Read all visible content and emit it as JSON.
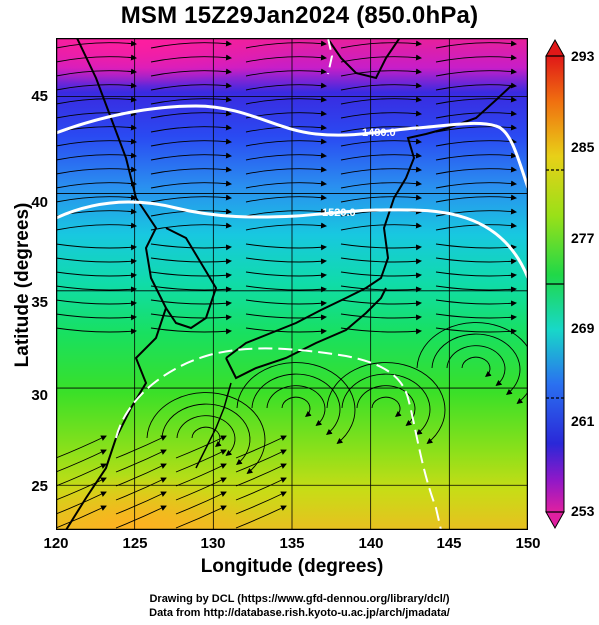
{
  "title": "MSM 15Z29Jan2024 (850.0hPa)",
  "map": {
    "lon_range": [
      120,
      150
    ],
    "lat_range": [
      22.7,
      48
    ],
    "x_ticks": [
      "120",
      "125",
      "130",
      "135",
      "140",
      "145",
      "150"
    ],
    "y_ticks": [
      "45",
      "40",
      "35",
      "30",
      "25"
    ],
    "xlabel": "Longitude (degrees)",
    "ylabel": "Latitude  (degrees)",
    "contour_labels": [
      "1480.0",
      "1520.0"
    ],
    "contour_color": "#ffffff",
    "coastline_color": "#000000"
  },
  "colorbar": {
    "min": 253,
    "max": 293,
    "ticks": [
      "293",
      "285",
      "277",
      "269",
      "261",
      "253"
    ]
  },
  "credits": {
    "line1": "Drawing by DCL (https://www.gfd-dennou.org/library/dcl/)",
    "line2": "Data from http://database.rish.kyoto-u.ac.jp/arch/jmadata/"
  }
}
